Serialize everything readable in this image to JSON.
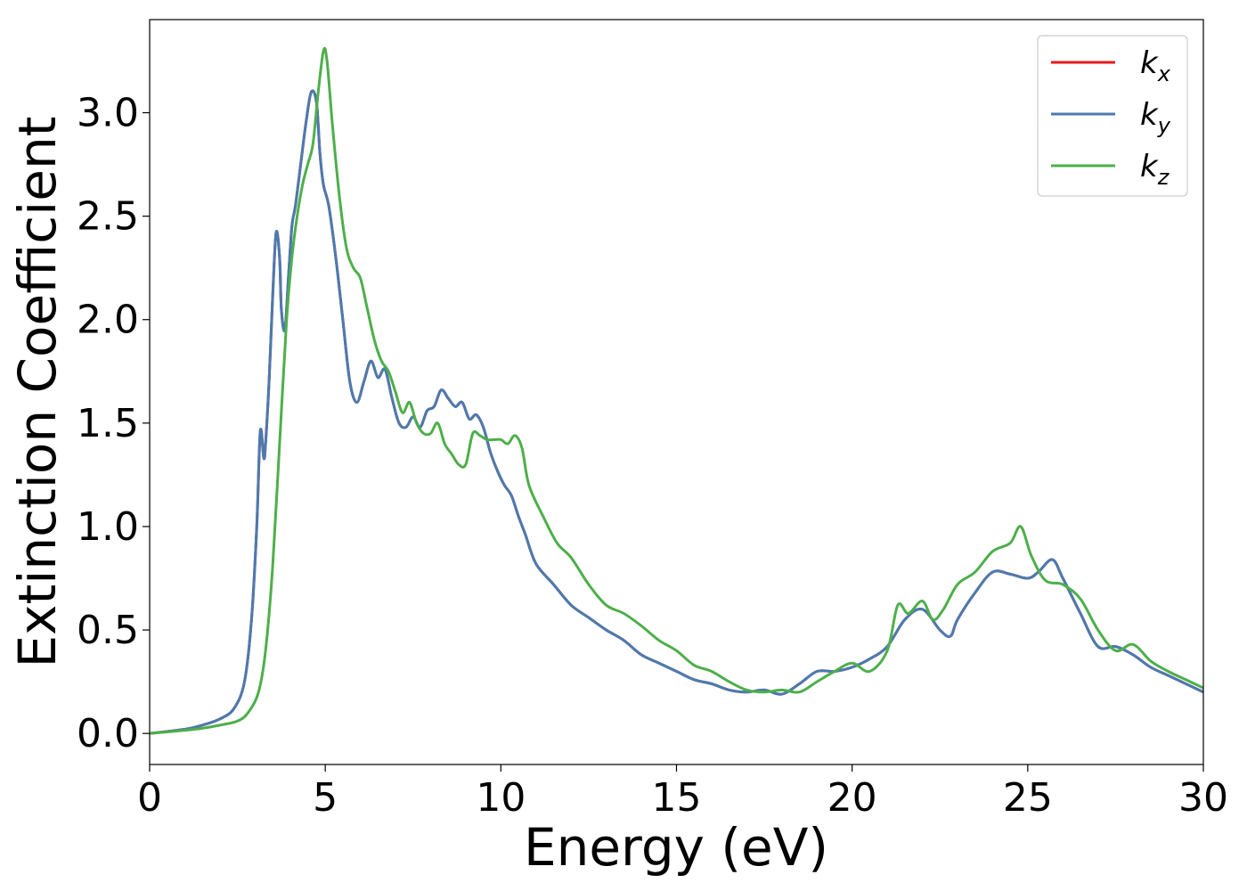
{
  "chart_data": {
    "type": "line",
    "xlabel": "Energy (eV)",
    "ylabel": "Extinction Coefficient",
    "xlim": [
      0,
      30
    ],
    "ylim": [
      -0.15,
      3.45
    ],
    "grid": false,
    "legend_position": "top-right",
    "x_ticks": [
      "0",
      "5",
      "10",
      "15",
      "20",
      "25",
      "30"
    ],
    "x_tick_values": [
      0,
      5,
      10,
      15,
      20,
      25,
      30
    ],
    "y_ticks": [
      "0.0",
      "0.5",
      "1.0",
      "1.5",
      "2.0",
      "2.5",
      "3.0"
    ],
    "y_tick_values": [
      0,
      0.5,
      1.0,
      1.5,
      2.0,
      2.5,
      3.0
    ],
    "series": [
      {
        "name": "k",
        "subscript": "x",
        "color": "#e41a1c",
        "x": [
          0,
          1,
          1.5,
          2,
          2.4,
          2.7,
          2.9,
          3.05,
          3.15,
          3.25,
          3.3,
          3.4,
          3.5,
          3.6,
          3.7,
          3.75,
          3.85,
          3.95,
          4.05,
          4.15,
          4.3,
          4.45,
          4.6,
          4.75,
          4.85,
          4.95,
          5.1,
          5.3,
          5.5,
          5.7,
          5.9,
          6.1,
          6.3,
          6.5,
          6.7,
          6.9,
          7.1,
          7.3,
          7.5,
          7.7,
          7.9,
          8.1,
          8.3,
          8.5,
          8.7,
          8.9,
          9.1,
          9.3,
          9.5,
          9.7,
          9.9,
          10.1,
          10.3,
          10.5,
          10.7,
          11,
          11.5,
          12,
          12.5,
          13,
          13.5,
          14,
          14.5,
          15,
          15.5,
          16,
          16.5,
          17,
          17.5,
          18,
          18.5,
          19,
          19.5,
          20,
          20.5,
          21,
          21.5,
          22,
          22.5,
          22.8,
          23,
          23.5,
          24,
          24.5,
          25,
          25.3,
          25.7,
          26,
          26.5,
          27,
          27.5,
          28,
          28.5,
          29,
          29.5,
          30
        ],
        "y": [
          0.0,
          0.02,
          0.04,
          0.07,
          0.12,
          0.25,
          0.55,
          1.0,
          1.46,
          1.33,
          1.4,
          1.7,
          2.1,
          2.42,
          2.3,
          2.05,
          1.95,
          2.2,
          2.45,
          2.55,
          2.75,
          2.95,
          3.1,
          3.05,
          2.8,
          2.65,
          2.55,
          2.3,
          2.0,
          1.7,
          1.6,
          1.7,
          1.8,
          1.72,
          1.76,
          1.62,
          1.5,
          1.48,
          1.53,
          1.48,
          1.56,
          1.58,
          1.66,
          1.62,
          1.58,
          1.6,
          1.52,
          1.54,
          1.48,
          1.36,
          1.27,
          1.2,
          1.15,
          1.05,
          0.96,
          0.82,
          0.72,
          0.62,
          0.56,
          0.5,
          0.45,
          0.38,
          0.34,
          0.3,
          0.26,
          0.24,
          0.21,
          0.2,
          0.21,
          0.19,
          0.24,
          0.3,
          0.3,
          0.32,
          0.36,
          0.42,
          0.55,
          0.6,
          0.5,
          0.47,
          0.55,
          0.68,
          0.78,
          0.77,
          0.75,
          0.78,
          0.84,
          0.75,
          0.58,
          0.42,
          0.42,
          0.38,
          0.32,
          0.28,
          0.24,
          0.2
        ]
      },
      {
        "name": "k",
        "subscript": "y",
        "color": "#4a7bb0",
        "x": [
          0,
          1,
          1.5,
          2,
          2.4,
          2.7,
          2.9,
          3.05,
          3.15,
          3.25,
          3.3,
          3.4,
          3.5,
          3.6,
          3.7,
          3.75,
          3.85,
          3.95,
          4.05,
          4.15,
          4.3,
          4.45,
          4.6,
          4.75,
          4.85,
          4.95,
          5.1,
          5.3,
          5.5,
          5.7,
          5.9,
          6.1,
          6.3,
          6.5,
          6.7,
          6.9,
          7.1,
          7.3,
          7.5,
          7.7,
          7.9,
          8.1,
          8.3,
          8.5,
          8.7,
          8.9,
          9.1,
          9.3,
          9.5,
          9.7,
          9.9,
          10.1,
          10.3,
          10.5,
          10.7,
          11,
          11.5,
          12,
          12.5,
          13,
          13.5,
          14,
          14.5,
          15,
          15.5,
          16,
          16.5,
          17,
          17.5,
          18,
          18.5,
          19,
          19.5,
          20,
          20.5,
          21,
          21.5,
          22,
          22.5,
          22.8,
          23,
          23.5,
          24,
          24.5,
          25,
          25.3,
          25.7,
          26,
          26.5,
          27,
          27.5,
          28,
          28.5,
          29,
          29.5,
          30
        ],
        "y": [
          0.0,
          0.02,
          0.04,
          0.07,
          0.12,
          0.25,
          0.55,
          1.0,
          1.46,
          1.33,
          1.4,
          1.7,
          2.1,
          2.42,
          2.3,
          2.05,
          1.95,
          2.2,
          2.45,
          2.55,
          2.75,
          2.95,
          3.1,
          3.05,
          2.8,
          2.65,
          2.55,
          2.3,
          2.0,
          1.7,
          1.6,
          1.7,
          1.8,
          1.72,
          1.76,
          1.62,
          1.5,
          1.48,
          1.53,
          1.48,
          1.56,
          1.58,
          1.66,
          1.62,
          1.58,
          1.6,
          1.52,
          1.54,
          1.48,
          1.36,
          1.27,
          1.2,
          1.15,
          1.05,
          0.96,
          0.82,
          0.72,
          0.62,
          0.56,
          0.5,
          0.45,
          0.38,
          0.34,
          0.3,
          0.26,
          0.24,
          0.21,
          0.2,
          0.21,
          0.19,
          0.24,
          0.3,
          0.3,
          0.32,
          0.36,
          0.42,
          0.55,
          0.6,
          0.5,
          0.47,
          0.55,
          0.68,
          0.78,
          0.77,
          0.75,
          0.78,
          0.84,
          0.75,
          0.58,
          0.42,
          0.42,
          0.38,
          0.32,
          0.28,
          0.24,
          0.2
        ]
      },
      {
        "name": "k",
        "subscript": "z",
        "color": "#4daf4a",
        "x": [
          0,
          1,
          1.5,
          2,
          2.5,
          2.8,
          3.1,
          3.3,
          3.5,
          3.7,
          3.9,
          4.05,
          4.2,
          4.35,
          4.5,
          4.65,
          4.8,
          4.95,
          5.05,
          5.2,
          5.4,
          5.6,
          5.8,
          6.0,
          6.2,
          6.4,
          6.6,
          6.8,
          7.0,
          7.2,
          7.4,
          7.6,
          7.8,
          8.0,
          8.2,
          8.4,
          8.6,
          8.8,
          9.0,
          9.2,
          9.4,
          9.6,
          9.8,
          10.0,
          10.2,
          10.4,
          10.6,
          10.8,
          11.2,
          11.6,
          12,
          12.5,
          13,
          13.5,
          14,
          14.5,
          15,
          15.5,
          16,
          16.5,
          17,
          17.5,
          18,
          18.5,
          19,
          19.5,
          20,
          20.5,
          21,
          21.3,
          21.6,
          22,
          22.3,
          22.6,
          23,
          23.5,
          24,
          24.5,
          24.8,
          25.1,
          25.5,
          26,
          26.5,
          27,
          27.5,
          28,
          28.5,
          29,
          29.5,
          30
        ],
        "y": [
          0.0,
          0.015,
          0.025,
          0.04,
          0.06,
          0.1,
          0.2,
          0.4,
          0.8,
          1.4,
          2.0,
          2.3,
          2.5,
          2.65,
          2.75,
          2.85,
          3.1,
          3.3,
          3.25,
          2.95,
          2.6,
          2.35,
          2.25,
          2.2,
          2.05,
          1.9,
          1.8,
          1.75,
          1.65,
          1.55,
          1.6,
          1.5,
          1.45,
          1.45,
          1.5,
          1.4,
          1.35,
          1.3,
          1.3,
          1.45,
          1.44,
          1.42,
          1.42,
          1.42,
          1.4,
          1.44,
          1.38,
          1.2,
          1.05,
          0.92,
          0.85,
          0.72,
          0.62,
          0.58,
          0.52,
          0.45,
          0.4,
          0.33,
          0.3,
          0.25,
          0.21,
          0.2,
          0.21,
          0.2,
          0.25,
          0.3,
          0.34,
          0.3,
          0.4,
          0.62,
          0.58,
          0.64,
          0.55,
          0.6,
          0.72,
          0.78,
          0.88,
          0.92,
          1.0,
          0.86,
          0.74,
          0.72,
          0.65,
          0.5,
          0.4,
          0.43,
          0.35,
          0.3,
          0.26,
          0.22
        ]
      }
    ]
  }
}
